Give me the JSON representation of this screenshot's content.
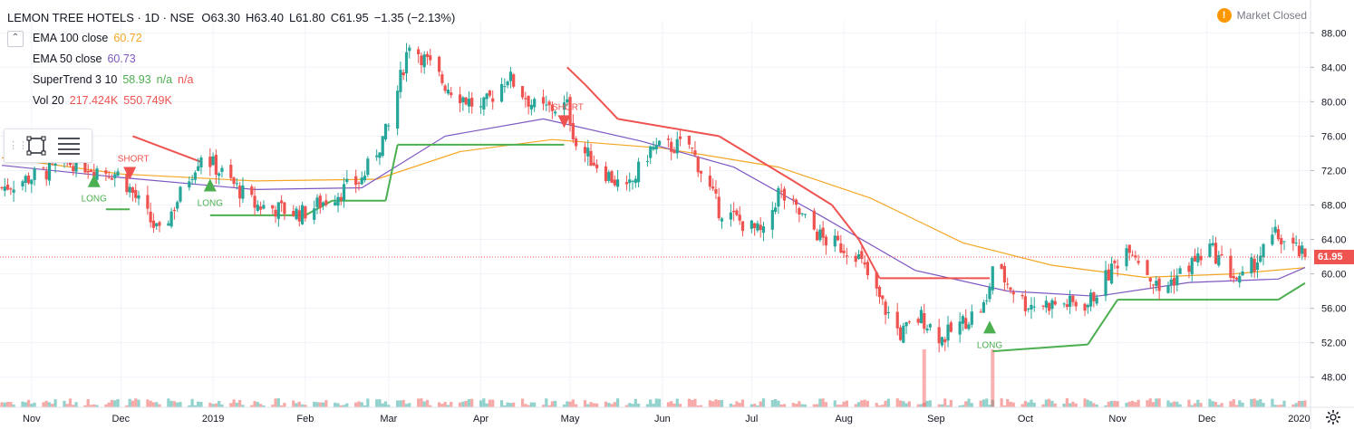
{
  "header": {
    "symbol": "LEMON TREE HOTELS · 1D · NSE",
    "ohlc": [
      {
        "label": "O",
        "value": "63.30"
      },
      {
        "label": "H",
        "value": "63.40"
      },
      {
        "label": "L",
        "value": "61.80"
      },
      {
        "label": "C",
        "value": "61.95"
      }
    ],
    "change": "−1.35 (−2.13%)",
    "market_status": "Market Closed"
  },
  "indicators": [
    {
      "name": "EMA 100 close",
      "values": [
        "60.72"
      ],
      "colors": [
        "#f5a623"
      ]
    },
    {
      "name": "EMA 50 close",
      "values": [
        "60.73"
      ],
      "colors": [
        "#7e57c2"
      ]
    },
    {
      "name": "SuperTrend 3 10",
      "values": [
        "58.93",
        "n/a",
        "n/a"
      ],
      "colors": [
        "#4caf50",
        "#4caf50",
        "#ef5350"
      ]
    },
    {
      "name": "Vol 20",
      "values": [
        "217.424K",
        "550.749K"
      ],
      "colors": [
        "#ef5350",
        "#ef5350"
      ]
    }
  ],
  "colors": {
    "up": "#26a69a",
    "down": "#ef5350",
    "ema100": "#f5a623",
    "ema50": "#7e57c2",
    "st_up": "#4caf50",
    "st_down": "#ef5350",
    "grid": "#f0f3fa"
  },
  "icons": [
    "warning-icon",
    "rectangle-tool-icon",
    "lines-tool-icon",
    "settings-gear-icon"
  ],
  "chart_data": {
    "type": "candlestick",
    "x_tick_labels": [
      "Nov",
      "Dec",
      "2019",
      "Feb",
      "Mar",
      "Apr",
      "May",
      "Jun",
      "Jul",
      "Aug",
      "Sep",
      "Oct",
      "Nov",
      "Dec",
      "2020"
    ],
    "y_ticks": [
      48,
      52,
      56,
      60,
      64,
      68,
      72,
      76,
      80,
      84,
      88
    ],
    "y_tick_labels": [
      "48.00",
      "52.00",
      "56.00",
      "60.00",
      "64.00",
      "68.00",
      "72.00",
      "76.00",
      "80.00",
      "84.00",
      "88.00"
    ],
    "ylim": [
      44.5,
      89.5
    ],
    "last_price": 61.95,
    "last_price_label": "61.95",
    "grid": true,
    "anchors": [
      {
        "month": "2018-10-22",
        "close": 70.0
      },
      {
        "month": "2018-11-15",
        "close": 73.0
      },
      {
        "month": "2018-12-01",
        "close": 71.5
      },
      {
        "month": "2018-12-14",
        "close": 64.5
      },
      {
        "month": "2018-12-28",
        "close": 74.0
      },
      {
        "month": "2019-01-15",
        "close": 68.0
      },
      {
        "month": "2019-01-31",
        "close": 67.0
      },
      {
        "month": "2019-02-20",
        "close": 71.0
      },
      {
        "month": "2019-03-01",
        "close": 77.0
      },
      {
        "month": "2019-03-08",
        "close": 87.0
      },
      {
        "month": "2019-03-20",
        "close": 82.0
      },
      {
        "month": "2019-04-01",
        "close": 79.0
      },
      {
        "month": "2019-04-10",
        "close": 83.0
      },
      {
        "month": "2019-04-20",
        "close": 79.0
      },
      {
        "month": "2019-04-30",
        "close": 79.5
      },
      {
        "month": "2019-05-03",
        "close": 75.0
      },
      {
        "month": "2019-05-20",
        "close": 69.5
      },
      {
        "month": "2019-05-28",
        "close": 74.5
      },
      {
        "month": "2019-06-10",
        "close": 75.0
      },
      {
        "month": "2019-06-20",
        "close": 67.5
      },
      {
        "month": "2019-07-05",
        "close": 64.5
      },
      {
        "month": "2019-07-10",
        "close": 69.5
      },
      {
        "month": "2019-07-25",
        "close": 64.0
      },
      {
        "month": "2019-08-05",
        "close": 62.5
      },
      {
        "month": "2019-08-13",
        "close": 57.0
      },
      {
        "month": "2019-08-20",
        "close": 53.0
      },
      {
        "month": "2019-08-27",
        "close": 55.0
      },
      {
        "month": "2019-09-03",
        "close": 52.5
      },
      {
        "month": "2019-09-18",
        "close": 56.5
      },
      {
        "month": "2019-09-20",
        "close": 61.0
      },
      {
        "month": "2019-10-01",
        "close": 56.5
      },
      {
        "month": "2019-10-22",
        "close": 56.5
      },
      {
        "month": "2019-11-05",
        "close": 63.5
      },
      {
        "month": "2019-11-15",
        "close": 58.0
      },
      {
        "month": "2019-12-02",
        "close": 63.0
      },
      {
        "month": "2019-12-12",
        "close": 59.0
      },
      {
        "month": "2019-12-24",
        "close": 64.5
      },
      {
        "month": "2020-01-03",
        "close": 61.95
      }
    ],
    "ema100": [
      {
        "date": "2018-10-22",
        "value": 73.5
      },
      {
        "date": "2018-12-01",
        "value": 71.6
      },
      {
        "date": "2019-01-15",
        "value": 70.8
      },
      {
        "date": "2019-02-25",
        "value": 71.0
      },
      {
        "date": "2019-03-25",
        "value": 74.2
      },
      {
        "date": "2019-04-25",
        "value": 75.6
      },
      {
        "date": "2019-06-01",
        "value": 74.6
      },
      {
        "date": "2019-07-10",
        "value": 72.4
      },
      {
        "date": "2019-08-10",
        "value": 68.8
      },
      {
        "date": "2019-09-10",
        "value": 63.6
      },
      {
        "date": "2019-10-10",
        "value": 61.0
      },
      {
        "date": "2019-11-10",
        "value": 59.6
      },
      {
        "date": "2019-12-10",
        "value": 60.0
      },
      {
        "date": "2020-01-03",
        "value": 60.72
      }
    ],
    "ema50": [
      {
        "date": "2018-10-22",
        "value": 72.6
      },
      {
        "date": "2018-12-01",
        "value": 71.2
      },
      {
        "date": "2019-01-15",
        "value": 69.8
      },
      {
        "date": "2019-02-20",
        "value": 70.0
      },
      {
        "date": "2019-03-20",
        "value": 76.0
      },
      {
        "date": "2019-04-22",
        "value": 78.0
      },
      {
        "date": "2019-05-25",
        "value": 75.4
      },
      {
        "date": "2019-06-25",
        "value": 72.4
      },
      {
        "date": "2019-07-25",
        "value": 66.6
      },
      {
        "date": "2019-08-25",
        "value": 60.4
      },
      {
        "date": "2019-09-25",
        "value": 58.0
      },
      {
        "date": "2019-10-25",
        "value": 57.4
      },
      {
        "date": "2019-11-25",
        "value": 59.0
      },
      {
        "date": "2019-12-25",
        "value": 59.4
      },
      {
        "date": "2020-01-03",
        "value": 60.73
      }
    ],
    "supertrend": [
      {
        "date": "2018-10-22",
        "value": 75.5,
        "trend": "down"
      },
      {
        "date": "2018-11-26",
        "value": 67.5,
        "trend": "up"
      },
      {
        "date": "2018-12-04",
        "value": 67.5,
        "trend": "up"
      },
      {
        "date": "2018-12-05",
        "value": 76.0,
        "trend": "down"
      },
      {
        "date": "2018-12-28",
        "value": 73.0,
        "trend": "down"
      },
      {
        "date": "2018-12-31",
        "value": 66.8,
        "trend": "up"
      },
      {
        "date": "2019-02-01",
        "value": 66.8,
        "trend": "up"
      },
      {
        "date": "2019-02-10",
        "value": 68.5,
        "trend": "up"
      },
      {
        "date": "2019-02-28",
        "value": 68.5,
        "trend": "up"
      },
      {
        "date": "2019-03-04",
        "value": 75.0,
        "trend": "up"
      },
      {
        "date": "2019-04-29",
        "value": 75.0,
        "trend": "up"
      },
      {
        "date": "2019-04-30",
        "value": 84.0,
        "trend": "down"
      },
      {
        "date": "2019-05-06",
        "value": 82.0,
        "trend": "down"
      },
      {
        "date": "2019-05-17",
        "value": 78.0,
        "trend": "down"
      },
      {
        "date": "2019-06-20",
        "value": 76.0,
        "trend": "down"
      },
      {
        "date": "2019-07-15",
        "value": 70.8,
        "trend": "down"
      },
      {
        "date": "2019-07-28",
        "value": 68.0,
        "trend": "down"
      },
      {
        "date": "2019-08-06",
        "value": 64.0,
        "trend": "down"
      },
      {
        "date": "2019-08-13",
        "value": 59.5,
        "trend": "down"
      },
      {
        "date": "2019-09-19",
        "value": 59.5,
        "trend": "down"
      },
      {
        "date": "2019-09-20",
        "value": 51.0,
        "trend": "up"
      },
      {
        "date": "2019-10-22",
        "value": 51.8,
        "trend": "up"
      },
      {
        "date": "2019-11-01",
        "value": 57.0,
        "trend": "up"
      },
      {
        "date": "2019-12-25",
        "value": 57.0,
        "trend": "up"
      },
      {
        "date": "2020-01-03",
        "value": 58.93,
        "trend": "up"
      }
    ],
    "signals": [
      {
        "date": "2018-11-22",
        "type": "LONG",
        "label": "LONG",
        "price": 70.5
      },
      {
        "date": "2018-12-04",
        "type": "SHORT",
        "label": "SHORT",
        "price": 72.0
      },
      {
        "date": "2018-12-31",
        "type": "LONG",
        "label": "LONG",
        "price": 70.0
      },
      {
        "date": "2019-04-29",
        "type": "SHORT",
        "label": "SHORT",
        "price": 78.0
      },
      {
        "date": "2019-09-19",
        "type": "LONG",
        "label": "LONG",
        "price": 53.5
      }
    ],
    "volume_spikes": [
      {
        "date": "2019-08-28",
        "volume": 550749
      },
      {
        "date": "2019-09-20",
        "volume": 550749
      }
    ],
    "volume_sma": 217424
  }
}
